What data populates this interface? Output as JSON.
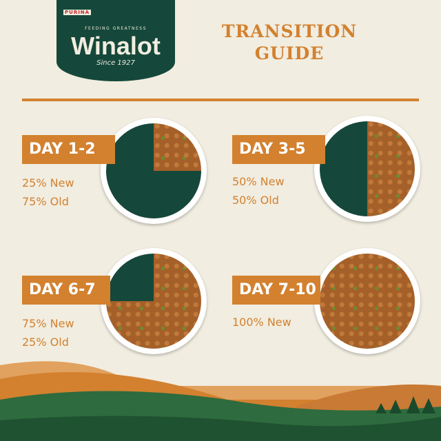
{
  "logo": {
    "purina": "PURINA",
    "tagline": "FEEDING GREATNESS",
    "brand": "Winalot",
    "since": "Since 1927"
  },
  "title": {
    "line1": "TRANSITION",
    "line2": "GUIDE"
  },
  "colors": {
    "accent": "#d3812f",
    "green": "#15483a",
    "food": "#a5602a",
    "background": "#f1ede0"
  },
  "steps": [
    {
      "day": "DAY 1-2",
      "new": "25% New",
      "old": "75% Old",
      "new_fraction": 0.25
    },
    {
      "day": "DAY 3-5",
      "new": "50% New",
      "old": "50% Old",
      "new_fraction": 0.5
    },
    {
      "day": "DAY 6-7",
      "new": "75% New",
      "old": "25% Old",
      "new_fraction": 0.75
    },
    {
      "day": "DAY 7-10",
      "new": "100% New",
      "new_fraction": 1.0
    }
  ]
}
